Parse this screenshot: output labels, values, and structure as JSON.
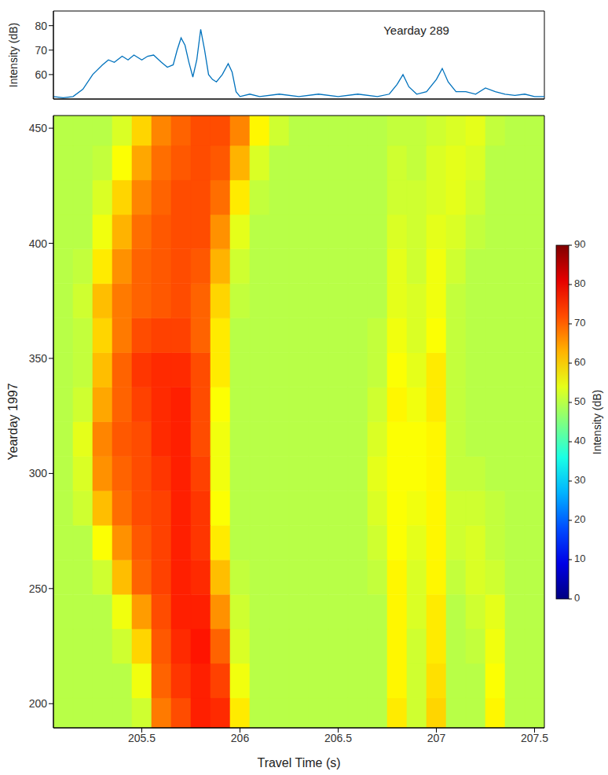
{
  "chart_data": [
    {
      "type": "line",
      "annotation": "Yearday 289",
      "y_label": "Intensity (dB)",
      "color": "#0072bd",
      "tick_labels": "y",
      "x": [
        205.05,
        205.1,
        205.15,
        205.2,
        205.25,
        205.3,
        205.33,
        205.36,
        205.4,
        205.43,
        205.46,
        205.5,
        205.53,
        205.56,
        205.6,
        205.63,
        205.66,
        205.68,
        205.7,
        205.72,
        205.74,
        205.76,
        205.78,
        205.8,
        205.82,
        205.84,
        205.86,
        205.88,
        205.91,
        205.94,
        205.96,
        205.98,
        206.0,
        206.05,
        206.1,
        206.2,
        206.3,
        206.4,
        206.5,
        206.6,
        206.7,
        206.76,
        206.8,
        206.83,
        206.86,
        206.9,
        206.95,
        207.0,
        207.03,
        207.06,
        207.1,
        207.15,
        207.2,
        207.25,
        207.3,
        207.35,
        207.4,
        207.45,
        207.5,
        207.55
      ],
      "values": [
        51,
        50.5,
        51,
        54,
        60,
        64,
        66,
        65,
        67.5,
        66,
        68,
        66,
        67.5,
        68,
        65,
        63,
        64,
        70,
        75,
        72,
        65,
        59,
        66,
        78.5,
        70,
        60,
        58,
        57,
        60,
        64.5,
        61,
        53,
        51,
        52,
        51,
        52,
        51,
        52,
        51,
        52,
        51,
        52,
        56,
        60,
        55,
        52,
        53,
        58,
        62.5,
        57,
        53,
        53,
        52,
        54.5,
        53,
        52,
        51.5,
        52,
        51,
        51
      ],
      "xlim": [
        205.05,
        207.55
      ],
      "ylim": [
        50,
        86
      ],
      "yticks": [
        60,
        70,
        80
      ]
    },
    {
      "type": "heatmap",
      "x_label": "Travel Time (s)",
      "y_label": "Yearday 1997",
      "x": [
        205.1,
        205.2,
        205.3,
        205.4,
        205.5,
        205.6,
        205.7,
        205.8,
        205.9,
        206.0,
        206.1,
        206.2,
        206.3,
        206.4,
        206.5,
        206.6,
        206.7,
        206.8,
        206.9,
        207.0,
        207.1,
        207.2,
        207.3,
        207.4,
        207.5
      ],
      "y": [
        195,
        210,
        225,
        240,
        255,
        270,
        285,
        300,
        315,
        330,
        345,
        360,
        375,
        390,
        405,
        420,
        435,
        450
      ],
      "cells": [
        [
          50,
          50,
          50,
          50,
          52,
          68,
          72,
          76,
          75,
          58,
          50,
          50,
          50,
          50,
          50,
          50,
          50,
          58,
          52,
          60,
          50,
          50,
          57,
          50,
          50
        ],
        [
          50,
          50,
          50,
          50,
          55,
          70,
          74,
          76,
          73,
          55,
          50,
          50,
          50,
          50,
          50,
          50,
          50,
          57,
          52,
          59,
          50,
          50,
          56,
          50,
          50
        ],
        [
          50,
          50,
          50,
          52,
          60,
          71,
          75,
          77,
          70,
          53,
          50,
          50,
          50,
          50,
          50,
          50,
          50,
          57,
          52,
          58,
          50,
          51,
          55,
          50,
          50
        ],
        [
          50,
          50,
          50,
          55,
          65,
          72,
          76,
          76,
          66,
          52,
          50,
          50,
          50,
          50,
          50,
          50,
          50,
          57,
          53,
          58,
          50,
          52,
          54,
          50,
          50
        ],
        [
          50,
          50,
          52,
          62,
          70,
          73,
          76,
          75,
          62,
          51,
          50,
          50,
          50,
          50,
          50,
          50,
          51,
          57,
          53,
          57,
          51,
          53,
          52,
          50,
          50
        ],
        [
          50,
          50,
          56,
          66,
          71,
          73,
          76,
          74,
          58,
          50,
          50,
          50,
          50,
          50,
          50,
          50,
          52,
          56,
          54,
          57,
          52,
          53,
          51,
          50,
          50
        ],
        [
          50,
          52,
          62,
          69,
          72,
          73,
          76,
          74,
          56,
          50,
          50,
          50,
          50,
          50,
          50,
          50,
          53,
          56,
          55,
          57,
          52,
          52,
          51,
          50,
          50
        ],
        [
          50,
          53,
          66,
          70,
          72,
          74,
          76,
          73,
          55,
          50,
          50,
          50,
          50,
          50,
          50,
          50,
          54,
          56,
          56,
          57,
          51,
          51,
          50,
          50,
          50
        ],
        [
          50,
          54,
          67,
          71,
          72,
          75,
          76,
          72,
          55,
          50,
          50,
          50,
          50,
          50,
          50,
          50,
          53,
          56,
          56,
          57,
          51,
          50,
          50,
          50,
          50
        ],
        [
          50,
          52,
          64,
          70,
          73,
          75,
          76,
          72,
          56,
          50,
          50,
          50,
          50,
          50,
          50,
          50,
          52,
          57,
          55,
          58,
          51,
          50,
          50,
          50,
          50
        ],
        [
          50,
          51,
          62,
          70,
          74,
          75,
          75,
          72,
          58,
          50,
          50,
          50,
          50,
          50,
          50,
          50,
          51,
          56,
          54,
          58,
          51,
          50,
          50,
          50,
          50
        ],
        [
          50,
          51,
          60,
          68,
          72,
          73,
          73,
          70,
          58,
          50,
          50,
          50,
          50,
          50,
          50,
          50,
          51,
          55,
          53,
          56,
          51,
          50,
          50,
          50,
          50
        ],
        [
          50,
          52,
          62,
          68,
          70,
          71,
          72,
          70,
          60,
          51,
          50,
          50,
          50,
          50,
          50,
          50,
          50,
          54,
          53,
          55,
          51,
          50,
          50,
          50,
          50
        ],
        [
          50,
          51,
          58,
          66,
          70,
          71,
          72,
          71,
          63,
          52,
          50,
          50,
          50,
          50,
          50,
          50,
          50,
          54,
          52,
          55,
          52,
          50,
          50,
          50,
          50
        ],
        [
          50,
          50,
          55,
          63,
          69,
          71,
          72,
          72,
          66,
          54,
          50,
          50,
          50,
          50,
          50,
          50,
          50,
          53,
          52,
          54,
          53,
          51,
          50,
          50,
          50
        ],
        [
          50,
          50,
          53,
          60,
          67,
          70,
          72,
          72,
          69,
          58,
          51,
          50,
          50,
          50,
          50,
          50,
          50,
          52,
          52,
          53,
          54,
          52,
          50,
          50,
          50
        ],
        [
          50,
          50,
          51,
          56,
          64,
          69,
          71,
          72,
          71,
          63,
          53,
          50,
          50,
          50,
          50,
          50,
          50,
          52,
          51,
          53,
          54,
          53,
          50,
          50,
          50
        ],
        [
          50,
          50,
          50,
          53,
          60,
          67,
          70,
          72,
          72,
          67,
          57,
          52,
          50,
          50,
          50,
          50,
          50,
          51,
          51,
          52,
          53,
          54,
          51,
          50,
          50
        ]
      ],
      "xlim": [
        205.05,
        207.55
      ],
      "ylim": [
        189.5,
        455.5
      ],
      "xticks": [
        205.5,
        206,
        206.5,
        207,
        207.5
      ],
      "yticks": [
        200,
        250,
        300,
        350,
        400,
        450
      ],
      "colorbar": {
        "label": "Intensity (dB)",
        "range": [
          0,
          90
        ],
        "ticks": [
          0,
          10,
          20,
          30,
          40,
          50,
          60,
          70,
          80,
          90
        ]
      }
    }
  ]
}
